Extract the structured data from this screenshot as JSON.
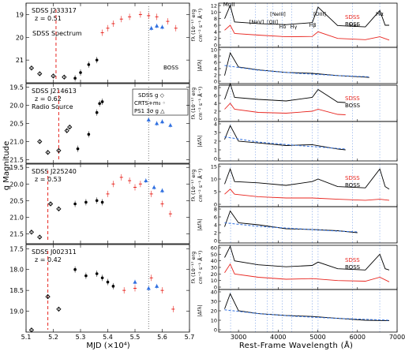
{
  "left": {
    "ylabel": "g Magnitude",
    "xlabel": "MJD (×10⁴)",
    "xticks": [
      "5.1",
      "5.2",
      "5.3",
      "5.4",
      "5.5",
      "5.6",
      "5.7"
    ],
    "legend": {
      "line1": "SDSS g ◇",
      "line2": "CRTS+m₀ ◦",
      "line3": "PS1 3σ g △"
    },
    "sdss_spectrum_label": "SDSS Spectrum",
    "boss_label": "BOSS"
  },
  "right": {
    "xlabel": "Rest-Frame Wavelength (Å)",
    "xticks": [
      "3000",
      "4000",
      "5000",
      "6000",
      "7000"
    ],
    "flux_ylabel_1": "fλ (10⁻¹⁷ erg",
    "flux_ylabel_2": "cm⁻² s⁻¹ Å⁻¹)",
    "ratio_ylabel": "|Δfλ|",
    "lines": {
      "mgii": "MgII",
      "nev": "[NeV]",
      "oii": "[OII]",
      "neiii": "[NeIII]",
      "hdelta": "Hδ",
      "hgamma": "Hγ",
      "hbeta": "Hβ",
      "oiii": "[OIII]",
      "hei": "HeI",
      "halpha": "Hα"
    },
    "sdss_label": "SDSS",
    "boss_label": "BOSS"
  },
  "colors": {
    "sdss": "#e8251f",
    "boss": "#000000",
    "ps1": "#2f6fe0",
    "fit": "#2f6fe0",
    "guide": "#7aa0e6",
    "spec_marker": "#e8251f"
  },
  "chart_data": [
    {
      "type": "scatter",
      "object": "SDSS J233317",
      "z_label": "z = 0.51",
      "extra_label": "",
      "xlim": [
        5.1,
        5.7
      ],
      "ylim": [
        22.0,
        18.5
      ],
      "yticks": [
        "19",
        "20",
        "21",
        "22"
      ],
      "sdss_spectrum_mjd": 5.21,
      "boss_mjd": 5.55,
      "sdss_g": [
        [
          5.12,
          21.35
        ],
        [
          5.15,
          21.6
        ],
        [
          5.2,
          21.7
        ],
        [
          5.24,
          21.75
        ]
      ],
      "crts": [
        [
          5.28,
          21.8
        ],
        [
          5.3,
          21.55
        ],
        [
          5.33,
          21.2
        ],
        [
          5.36,
          21.0
        ]
      ],
      "ptf": [
        [
          5.38,
          19.8
        ],
        [
          5.4,
          19.6
        ],
        [
          5.42,
          19.4
        ],
        [
          5.45,
          19.2
        ],
        [
          5.48,
          19.1
        ],
        [
          5.52,
          19.0
        ],
        [
          5.55,
          19.05
        ],
        [
          5.58,
          19.1
        ],
        [
          5.62,
          19.3
        ],
        [
          5.65,
          19.6
        ]
      ],
      "ps1": [
        [
          5.56,
          19.6
        ],
        [
          5.58,
          19.5
        ],
        [
          5.6,
          19.55
        ]
      ]
    },
    {
      "type": "scatter",
      "object": "SDSS J214613",
      "z_label": "z = 0.62",
      "extra_label": "Radio Source",
      "xlim": [
        5.1,
        5.7
      ],
      "ylim": [
        21.6,
        19.4
      ],
      "yticks": [
        "19.5",
        "20.0",
        "20.5",
        "21.0",
        "21.5"
      ],
      "sdss_spectrum_mjd": 5.22,
      "boss_mjd": 5.55,
      "sdss_g": [
        [
          5.15,
          21.0
        ],
        [
          5.18,
          21.3
        ],
        [
          5.22,
          21.25
        ],
        [
          5.25,
          20.7
        ],
        [
          5.26,
          20.6
        ]
      ],
      "crts": [
        [
          5.29,
          21.2
        ],
        [
          5.33,
          20.8
        ],
        [
          5.36,
          20.2
        ],
        [
          5.37,
          19.95
        ],
        [
          5.38,
          19.9
        ]
      ],
      "ptf": [],
      "ps1": [
        [
          5.55,
          20.4
        ],
        [
          5.58,
          20.5
        ],
        [
          5.6,
          20.45
        ],
        [
          5.63,
          20.55
        ]
      ]
    },
    {
      "type": "scatter",
      "object": "SDSS J225240",
      "z_label": "z = 0.53",
      "extra_label": "",
      "xlim": [
        5.1,
        5.7
      ],
      "ylim": [
        21.8,
        19.4
      ],
      "yticks": [
        "19.5",
        "20.0",
        "20.5",
        "21.0",
        "21.5"
      ],
      "sdss_spectrum_mjd": 5.18,
      "boss_mjd": 5.55,
      "sdss_g": [
        [
          5.12,
          21.45
        ],
        [
          5.15,
          21.6
        ],
        [
          5.19,
          20.6
        ],
        [
          5.22,
          20.75
        ]
      ],
      "crts": [
        [
          5.28,
          20.6
        ],
        [
          5.32,
          20.55
        ],
        [
          5.36,
          20.5
        ],
        [
          5.38,
          20.55
        ]
      ],
      "ptf": [
        [
          5.4,
          20.3
        ],
        [
          5.42,
          20.0
        ],
        [
          5.45,
          19.8
        ],
        [
          5.48,
          19.9
        ],
        [
          5.5,
          20.1
        ],
        [
          5.52,
          20.0
        ],
        [
          5.56,
          20.3
        ],
        [
          5.6,
          20.6
        ],
        [
          5.63,
          20.9
        ]
      ],
      "ps1": [
        [
          5.54,
          19.9
        ],
        [
          5.57,
          20.1
        ],
        [
          5.6,
          20.2
        ]
      ]
    },
    {
      "type": "scatter",
      "object": "SDSS J002311",
      "z_label": "z = 0.42",
      "extra_label": "",
      "xlim": [
        5.1,
        5.7
      ],
      "ylim": [
        19.5,
        17.4
      ],
      "yticks": [
        "17.5",
        "18.0",
        "18.5",
        "19.0"
      ],
      "sdss_spectrum_mjd": 5.18,
      "boss_mjd": 5.55,
      "sdss_g": [
        [
          5.12,
          19.45
        ],
        [
          5.18,
          18.65
        ],
        [
          5.22,
          18.95
        ]
      ],
      "crts": [
        [
          5.28,
          18.0
        ],
        [
          5.32,
          18.15
        ],
        [
          5.36,
          18.1
        ],
        [
          5.38,
          18.2
        ],
        [
          5.4,
          18.3
        ],
        [
          5.42,
          18.4
        ]
      ],
      "ptf": [
        [
          5.46,
          18.5
        ],
        [
          5.5,
          18.45
        ],
        [
          5.56,
          18.2
        ],
        [
          5.6,
          18.5
        ],
        [
          5.64,
          18.95
        ]
      ],
      "ps1": [
        [
          5.5,
          18.3
        ],
        [
          5.55,
          18.45
        ],
        [
          5.58,
          18.4
        ]
      ]
    },
    {
      "type": "line",
      "object": "SDSS J233317 spectrum",
      "xlim": [
        2500,
        7000
      ],
      "flux_yticks": [
        "0",
        "2",
        "4",
        "6",
        "8",
        "10",
        "12"
      ],
      "ratio_yticks": [
        "0",
        "2",
        "4",
        "6",
        "8",
        "10"
      ],
      "boss": [
        [
          2650,
          8.0
        ],
        [
          2790,
          12.0
        ],
        [
          2900,
          7.0
        ],
        [
          3500,
          6.5
        ],
        [
          4200,
          6.2
        ],
        [
          4860,
          6.8
        ],
        [
          5007,
          11.5
        ],
        [
          5500,
          5.9
        ],
        [
          6200,
          5.5
        ],
        [
          6563,
          10.5
        ],
        [
          6700,
          6.0
        ],
        [
          6800,
          6.0
        ]
      ],
      "sdss": [
        [
          2650,
          4.5
        ],
        [
          2790,
          6.0
        ],
        [
          2900,
          3.5
        ],
        [
          3500,
          3.0
        ],
        [
          4200,
          2.5
        ],
        [
          4860,
          2.6
        ],
        [
          5007,
          4.0
        ],
        [
          5500,
          2.0
        ],
        [
          6200,
          1.6
        ],
        [
          6563,
          2.5
        ],
        [
          6800,
          1.5
        ]
      ],
      "ratio": [
        [
          2650,
          1.8
        ],
        [
          2790,
          9.0
        ],
        [
          3000,
          4.5
        ],
        [
          3500,
          3.6
        ],
        [
          4200,
          2.8
        ],
        [
          4860,
          2.5
        ],
        [
          5500,
          1.8
        ],
        [
          6200,
          1.3
        ],
        [
          6300,
          1.2
        ]
      ],
      "ratio_fit": [
        [
          2650,
          5.0
        ],
        [
          3500,
          3.5
        ],
        [
          4500,
          2.5
        ],
        [
          5500,
          1.8
        ],
        [
          6300,
          1.4
        ]
      ]
    },
    {
      "type": "line",
      "object": "SDSS J214613 spectrum",
      "xlim": [
        2500,
        7000
      ],
      "flux_yticks": [
        "0",
        "2",
        "4",
        "6",
        "8"
      ],
      "ratio_yticks": [
        "0",
        "1",
        "2",
        "3",
        "4"
      ],
      "boss": [
        [
          2650,
          5.0
        ],
        [
          2790,
          9.0
        ],
        [
          2900,
          5.5
        ],
        [
          3500,
          5.0
        ],
        [
          4200,
          4.6
        ],
        [
          4860,
          5.5
        ],
        [
          5007,
          7.5
        ],
        [
          5500,
          4.3
        ],
        [
          5700,
          4.2
        ]
      ],
      "sdss": [
        [
          2650,
          2.5
        ],
        [
          2790,
          4.0
        ],
        [
          2900,
          2.5
        ],
        [
          3500,
          1.7
        ],
        [
          4200,
          1.5
        ],
        [
          4860,
          2.0
        ],
        [
          5007,
          2.5
        ],
        [
          5500,
          1.2
        ],
        [
          5700,
          1.1
        ]
      ],
      "ratio": [
        [
          2650,
          2.2
        ],
        [
          2790,
          3.8
        ],
        [
          3000,
          2.0
        ],
        [
          3500,
          1.8
        ],
        [
          4200,
          1.5
        ],
        [
          4860,
          1.6
        ],
        [
          5500,
          1.1
        ],
        [
          5700,
          1.0
        ]
      ],
      "ratio_fit": [
        [
          2650,
          2.5
        ],
        [
          3500,
          1.9
        ],
        [
          4500,
          1.5
        ],
        [
          5700,
          1.1
        ]
      ]
    },
    {
      "type": "line",
      "object": "SDSS J225240 spectrum",
      "xlim": [
        2500,
        7000
      ],
      "flux_yticks": [
        "0",
        "5",
        "10",
        "15"
      ],
      "ratio_yticks": [
        "0",
        "2",
        "4",
        "6",
        "8"
      ],
      "boss": [
        [
          2650,
          8.0
        ],
        [
          2790,
          14.0
        ],
        [
          2900,
          9.0
        ],
        [
          3500,
          8.5
        ],
        [
          4200,
          7.5
        ],
        [
          4860,
          9.0
        ],
        [
          5007,
          10.0
        ],
        [
          5500,
          7.0
        ],
        [
          6200,
          6.5
        ],
        [
          6563,
          14.0
        ],
        [
          6700,
          7.0
        ],
        [
          6800,
          6.0
        ]
      ],
      "sdss": [
        [
          2650,
          4.0
        ],
        [
          2790,
          6.0
        ],
        [
          2900,
          4.0
        ],
        [
          3500,
          3.0
        ],
        [
          4200,
          2.5
        ],
        [
          4860,
          2.5
        ],
        [
          5500,
          2.0
        ],
        [
          6200,
          1.6
        ],
        [
          6563,
          2.0
        ],
        [
          6800,
          1.6
        ]
      ],
      "ratio": [
        [
          2650,
          3.5
        ],
        [
          2790,
          7.5
        ],
        [
          3000,
          4.5
        ],
        [
          3500,
          4.0
        ],
        [
          4200,
          3.0
        ],
        [
          4860,
          2.8
        ],
        [
          5500,
          2.5
        ],
        [
          6000,
          2.0
        ]
      ],
      "ratio_fit": [
        [
          2650,
          4.5
        ],
        [
          3500,
          3.6
        ],
        [
          4500,
          3.0
        ],
        [
          5500,
          2.4
        ],
        [
          6000,
          2.2
        ]
      ]
    },
    {
      "type": "line",
      "object": "SDSS J002311 spectrum",
      "xlim": [
        2500,
        7000
      ],
      "flux_yticks": [
        "0",
        "10",
        "20",
        "30",
        "40",
        "50",
        "60"
      ],
      "ratio_yticks": [
        "0",
        "10",
        "20",
        "30",
        "40"
      ],
      "boss": [
        [
          2650,
          45.0
        ],
        [
          2790,
          62.0
        ],
        [
          2900,
          40.0
        ],
        [
          3500,
          34.0
        ],
        [
          4200,
          31.0
        ],
        [
          4860,
          33.0
        ],
        [
          5007,
          38.0
        ],
        [
          5500,
          28.0
        ],
        [
          6200,
          26.0
        ],
        [
          6563,
          50.0
        ],
        [
          6700,
          28.0
        ],
        [
          6800,
          26.0
        ]
      ],
      "sdss": [
        [
          2650,
          22.0
        ],
        [
          2790,
          35.0
        ],
        [
          2900,
          20.0
        ],
        [
          3500,
          15.0
        ],
        [
          4200,
          12.0
        ],
        [
          4860,
          13.0
        ],
        [
          5500,
          10.0
        ],
        [
          6200,
          9.0
        ],
        [
          6563,
          15.0
        ],
        [
          6800,
          8.0
        ]
      ],
      "ratio": [
        [
          2650,
          22.0
        ],
        [
          2790,
          38.0
        ],
        [
          3000,
          20.0
        ],
        [
          3500,
          17.0
        ],
        [
          4200,
          15.0
        ],
        [
          4860,
          14.0
        ],
        [
          5500,
          12.0
        ],
        [
          6200,
          10.0
        ],
        [
          6800,
          9.5
        ]
      ],
      "ratio_fit": [
        [
          2650,
          21.0
        ],
        [
          3500,
          17.0
        ],
        [
          4500,
          14.0
        ],
        [
          5500,
          12.0
        ],
        [
          6800,
          10.0
        ]
      ]
    }
  ]
}
